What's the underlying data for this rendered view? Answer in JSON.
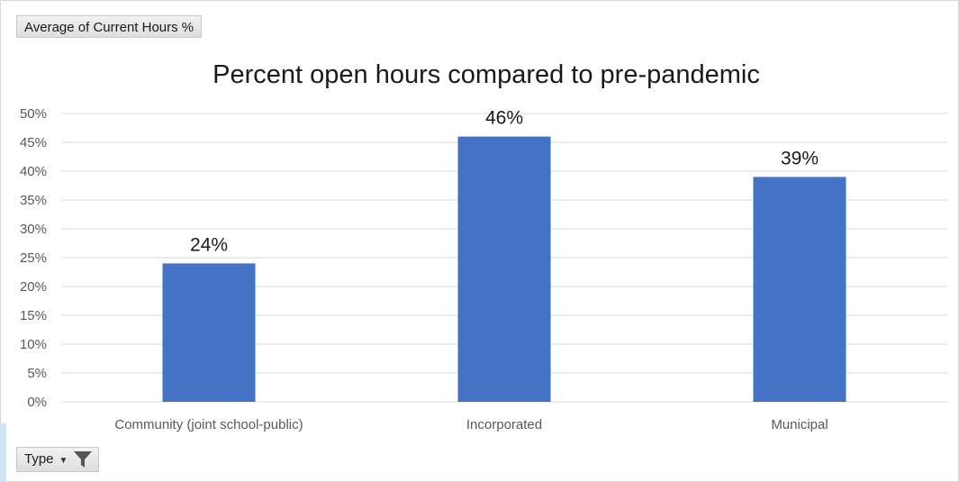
{
  "pivot": {
    "value_field": "Average of Current Hours %",
    "axis_field": "Type"
  },
  "colors": {
    "bar": "#4472C4",
    "grid": "#d9d9d9",
    "axis_text": "#595959"
  },
  "chart_data": {
    "type": "bar",
    "title": "Percent open hours compared to pre-pandemic",
    "categories": [
      "Community (joint school-public)",
      "Incorporated",
      "Municipal"
    ],
    "values": [
      24,
      46,
      39
    ],
    "data_labels": [
      "24%",
      "46%",
      "39%"
    ],
    "ylim": [
      0,
      50
    ],
    "yticks": [
      0,
      5,
      10,
      15,
      20,
      25,
      30,
      35,
      40,
      45,
      50
    ],
    "ytick_labels": [
      "0%",
      "5%",
      "10%",
      "15%",
      "20%",
      "25%",
      "30%",
      "35%",
      "40%",
      "45%",
      "50%"
    ],
    "grid": true,
    "legend": "none"
  }
}
